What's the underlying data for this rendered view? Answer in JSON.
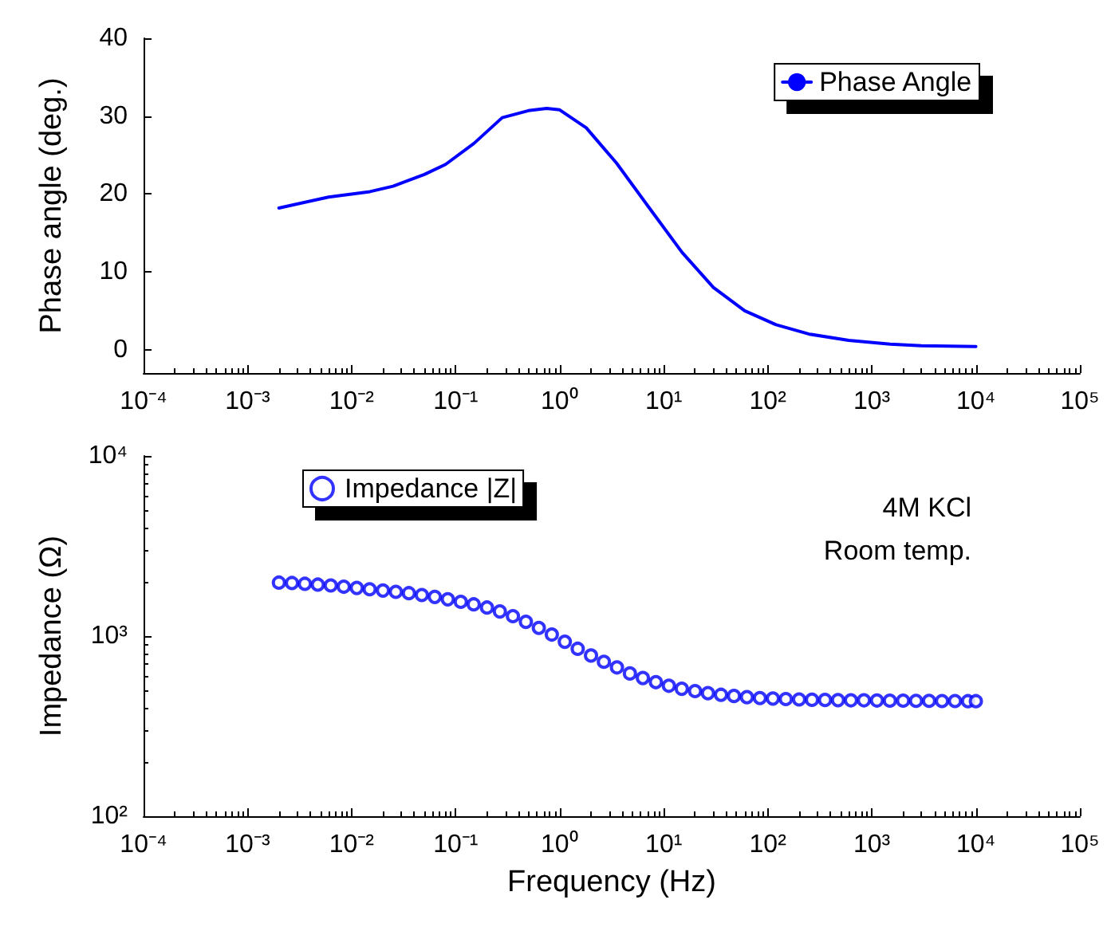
{
  "chart_data": [
    {
      "type": "line",
      "ylabel": "Phase angle (deg.)",
      "legend": "top right",
      "marker": "none",
      "line_style": "solid",
      "grid": false,
      "xlim": [
        0.0001,
        100000
      ],
      "xticks": [
        {
          "value": 0.0001,
          "label": "10⁻⁴"
        },
        {
          "value": 0.001,
          "label": "10⁻³"
        },
        {
          "value": 0.01,
          "label": "10⁻²"
        },
        {
          "value": 0.1,
          "label": "10⁻¹"
        },
        {
          "value": 1,
          "label": "10⁰"
        },
        {
          "value": 10,
          "label": "10¹"
        },
        {
          "value": 100,
          "label": "10²"
        },
        {
          "value": 1000,
          "label": "10³"
        },
        {
          "value": 10000,
          "label": "10⁴"
        },
        {
          "value": 100000,
          "label": "10⁵"
        }
      ],
      "ylim": [
        -3,
        40
      ],
      "yticks": [
        0,
        10,
        20,
        30,
        40
      ],
      "log": "x",
      "series": [
        {
          "name": "Phase Angle",
          "color": "#0000ff",
          "x": [
            0.002,
            0.006,
            0.015,
            0.025,
            0.05,
            0.08,
            0.15,
            0.28,
            0.5,
            0.75,
            1,
            1.8,
            3.5,
            7,
            15,
            30,
            60,
            120,
            250,
            600,
            1500,
            3000,
            10000
          ],
          "values": [
            18.2,
            19.6,
            20.3,
            21,
            22.5,
            23.8,
            26.5,
            29.8,
            30.7,
            31,
            30.8,
            28.5,
            24,
            18.5,
            12.5,
            8,
            5,
            3.2,
            2,
            1.2,
            0.7,
            0.5,
            0.4
          ]
        }
      ]
    },
    {
      "type": "scatter",
      "xlabel": "Frequency (Hz)",
      "ylabel": "Impedance (Ω)",
      "legend": "top left",
      "marker": "circle",
      "grid": false,
      "annotations": [
        "4M KCl",
        "Room temp."
      ],
      "xlim": [
        0.0001,
        100000
      ],
      "xticks": [
        {
          "value": 0.0001,
          "label": "10⁻⁴"
        },
        {
          "value": 0.001,
          "label": "10⁻³"
        },
        {
          "value": 0.01,
          "label": "10⁻²"
        },
        {
          "value": 0.1,
          "label": "10⁻¹"
        },
        {
          "value": 1,
          "label": "10⁰"
        },
        {
          "value": 10,
          "label": "10¹"
        },
        {
          "value": 100,
          "label": "10²"
        },
        {
          "value": 1000,
          "label": "10³"
        },
        {
          "value": 10000,
          "label": "10⁴"
        },
        {
          "value": 100000,
          "label": "10⁵"
        }
      ],
      "ylim": [
        100,
        10000
      ],
      "yticks": [
        {
          "value": 100,
          "label": "10²"
        },
        {
          "value": 1000,
          "label": "10³"
        },
        {
          "value": 10000,
          "label": "10⁴"
        }
      ],
      "log": "xy",
      "series": [
        {
          "name": "Impedance |Z|",
          "color": "#0000ff",
          "x": [
            0.002,
            0.00267,
            0.00355,
            0.00473,
            0.0063,
            0.0084,
            0.0112,
            0.0149,
            0.02,
            0.0266,
            0.0355,
            0.0473,
            0.063,
            0.084,
            0.112,
            0.149,
            0.2,
            0.266,
            0.355,
            0.473,
            0.63,
            0.84,
            1.12,
            1.49,
            2,
            2.66,
            3.55,
            4.73,
            6.3,
            8.4,
            11.2,
            14.9,
            20,
            26.6,
            35.5,
            47.3,
            63,
            84,
            112,
            149,
            200,
            266,
            355,
            473,
            630,
            840,
            1120,
            1490,
            2000,
            2660,
            3550,
            4730,
            6300,
            8400,
            10000
          ],
          "values": [
            1980,
            1970,
            1950,
            1930,
            1910,
            1880,
            1850,
            1820,
            1790,
            1760,
            1730,
            1690,
            1650,
            1600,
            1550,
            1500,
            1440,
            1370,
            1290,
            1200,
            1110,
            1020,
            930,
            850,
            780,
            720,
            670,
            620,
            585,
            555,
            530,
            510,
            495,
            482,
            472,
            465,
            458,
            453,
            450,
            447,
            445,
            443,
            442,
            441,
            440,
            440,
            439,
            438,
            438,
            437,
            437,
            436,
            436,
            435,
            435
          ]
        }
      ]
    }
  ]
}
